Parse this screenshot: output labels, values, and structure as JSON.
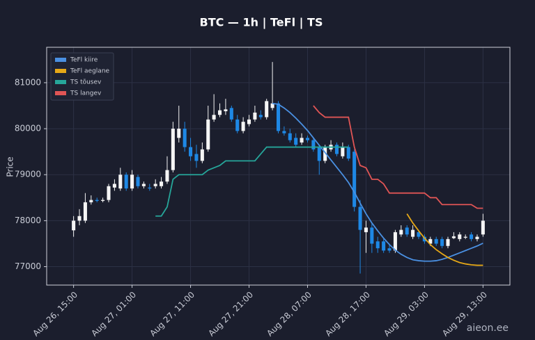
{
  "chart_data": {
    "type": "candlestick",
    "title": "BTC — 1h  |  TeFl  |  TS",
    "y_label": "Price",
    "watermark": "aieon.ee",
    "categories": [
      "Aug 26, 15:00",
      null,
      null,
      null,
      null,
      null,
      null,
      null,
      null,
      null,
      "Aug 27, 01:00",
      null,
      null,
      null,
      null,
      null,
      null,
      null,
      null,
      null,
      "Aug 27, 11:00",
      null,
      null,
      null,
      null,
      null,
      null,
      null,
      null,
      null,
      "Aug 27, 21:00",
      null,
      null,
      null,
      null,
      null,
      null,
      null,
      null,
      null,
      "Aug 28, 07:00",
      null,
      null,
      null,
      null,
      null,
      null,
      null,
      null,
      null,
      "Aug 28, 17:00",
      null,
      null,
      null,
      null,
      null,
      null,
      null,
      null,
      null,
      "Aug 29, 03:00",
      null,
      null,
      null,
      null,
      null,
      null,
      null,
      null,
      null,
      "Aug 29, 13:00"
    ],
    "open": [
      77790,
      78000,
      78000,
      78400,
      78450,
      78430,
      78450,
      78720,
      78700,
      79000,
      78700,
      78950,
      78750,
      78720,
      78750,
      78750,
      78850,
      79100,
      79800,
      80000,
      79600,
      79450,
      79300,
      79550,
      80200,
      80300,
      80380,
      80450,
      80200,
      79950,
      80100,
      80200,
      80300,
      80250,
      80450,
      80550,
      79950,
      79900,
      79800,
      79700,
      79800,
      79750,
      79600,
      79300,
      79550,
      79650,
      79400,
      79600,
      79500,
      78300,
      77750,
      77850,
      77550,
      77550,
      77400,
      77350,
      77700,
      77850,
      77650,
      77750,
      77650,
      77500,
      77600,
      77600,
      77450,
      77620,
      77600,
      77630,
      77700,
      77600,
      77700
    ],
    "high": [
      78100,
      78250,
      78600,
      78550,
      78500,
      78500,
      78800,
      78900,
      79150,
      79050,
      79100,
      79000,
      78850,
      78800,
      78900,
      78950,
      79400,
      80150,
      80500,
      80150,
      79800,
      79650,
      79700,
      80500,
      80750,
      80550,
      80650,
      80500,
      80300,
      80250,
      80300,
      80500,
      80400,
      80650,
      81450,
      80600,
      80050,
      80000,
      79900,
      79900,
      79850,
      79800,
      79650,
      79650,
      79750,
      79700,
      79700,
      79650,
      79550,
      78450,
      78000,
      77950,
      77650,
      77600,
      77500,
      77800,
      77900,
      77900,
      77900,
      77800,
      77700,
      77650,
      77650,
      77650,
      77650,
      77750,
      77750,
      77700,
      77750,
      77700,
      78150
    ],
    "low": [
      77650,
      77900,
      77950,
      78350,
      78400,
      78400,
      78400,
      78650,
      78650,
      78650,
      78650,
      78700,
      78700,
      78650,
      78700,
      78700,
      78800,
      79050,
      79700,
      79500,
      79300,
      79150,
      79250,
      79500,
      80150,
      80250,
      80300,
      80150,
      79900,
      79900,
      80050,
      80150,
      80200,
      80200,
      80400,
      79900,
      79850,
      79700,
      79600,
      79650,
      79700,
      79500,
      79000,
      79250,
      79500,
      79400,
      79350,
      79300,
      78200,
      76850,
      77300,
      77300,
      77300,
      77300,
      77300,
      77300,
      77650,
      77650,
      77600,
      77600,
      77500,
      77450,
      77450,
      77400,
      77400,
      77600,
      77550,
      77600,
      77550,
      77550,
      77650
    ],
    "close": [
      78000,
      78100,
      78400,
      78450,
      78430,
      78450,
      78750,
      78800,
      79000,
      78700,
      79000,
      78750,
      78800,
      78700,
      78800,
      78850,
      79100,
      80000,
      80000,
      79600,
      79400,
      79300,
      79550,
      80200,
      80300,
      80400,
      80420,
      80200,
      79950,
      80150,
      80200,
      80350,
      80250,
      80600,
      80550,
      79950,
      79900,
      79750,
      79650,
      79800,
      79750,
      79550,
      79300,
      79600,
      79650,
      79450,
      79600,
      79350,
      78300,
      77800,
      77850,
      77500,
      77400,
      77350,
      77350,
      77750,
      77800,
      77700,
      77800,
      77650,
      77550,
      77600,
      77500,
      77450,
      77600,
      77660,
      77700,
      77650,
      77600,
      77650,
      78000
    ],
    "up_color": "#f5f5f5",
    "down_color": "#1e88e5",
    "series": [
      {
        "name": "TeFl kiire",
        "color": "#4a90e2",
        "values": [
          null,
          null,
          null,
          null,
          null,
          null,
          null,
          null,
          null,
          null,
          null,
          null,
          null,
          null,
          null,
          null,
          null,
          null,
          null,
          null,
          null,
          null,
          null,
          null,
          null,
          null,
          null,
          null,
          null,
          null,
          null,
          null,
          null,
          null,
          80550,
          80530,
          80450,
          80350,
          80230,
          80100,
          79960,
          79800,
          79640,
          79480,
          79320,
          79160,
          79000,
          78830,
          78620,
          78380,
          78150,
          77950,
          77780,
          77620,
          77480,
          77360,
          77270,
          77200,
          77150,
          77130,
          77120,
          77120,
          77130,
          77160,
          77200,
          77250,
          77300,
          77350,
          77400,
          77450,
          77510
        ]
      },
      {
        "name": "TeFl aeglane",
        "color": "#e6a817",
        "values": [
          null,
          null,
          null,
          null,
          null,
          null,
          null,
          null,
          null,
          null,
          null,
          null,
          null,
          null,
          null,
          null,
          null,
          null,
          null,
          null,
          null,
          null,
          null,
          null,
          null,
          null,
          null,
          null,
          null,
          null,
          null,
          null,
          null,
          null,
          null,
          null,
          null,
          null,
          null,
          null,
          null,
          null,
          null,
          null,
          null,
          null,
          null,
          null,
          null,
          null,
          null,
          null,
          null,
          null,
          null,
          null,
          null,
          78150,
          77950,
          77780,
          77620,
          77480,
          77370,
          77280,
          77200,
          77140,
          77090,
          77060,
          77040,
          77030,
          77030
        ]
      },
      {
        "name": "TS tõusev",
        "color": "#26a69a",
        "values": [
          null,
          null,
          null,
          null,
          null,
          null,
          null,
          null,
          null,
          null,
          null,
          null,
          null,
          null,
          78100,
          78100,
          78300,
          78900,
          79000,
          79000,
          79000,
          79000,
          79000,
          79100,
          79150,
          79200,
          79300,
          79300,
          79300,
          79300,
          79300,
          79300,
          79450,
          79600,
          79600,
          79600,
          79600,
          79600,
          79600,
          79600,
          79600,
          79600,
          79600,
          79600,
          79600,
          79600,
          79600,
          79600,
          null,
          null,
          null,
          null,
          null,
          null,
          null,
          null,
          null,
          null,
          null,
          null,
          null,
          null,
          null,
          null,
          null,
          null,
          null,
          null,
          null,
          null,
          null
        ]
      },
      {
        "name": "TS langev",
        "color": "#e05555",
        "values": [
          null,
          null,
          null,
          null,
          null,
          null,
          null,
          null,
          null,
          null,
          null,
          null,
          null,
          null,
          null,
          null,
          null,
          null,
          null,
          null,
          null,
          null,
          null,
          null,
          null,
          null,
          null,
          null,
          null,
          null,
          null,
          null,
          null,
          null,
          null,
          null,
          null,
          null,
          null,
          null,
          null,
          80500,
          80350,
          80250,
          80250,
          80250,
          80250,
          80250,
          79600,
          79200,
          79150,
          78900,
          78900,
          78800,
          78600,
          78600,
          78600,
          78600,
          78600,
          78600,
          78600,
          78500,
          78500,
          78350,
          78350,
          78350,
          78350,
          78350,
          78350,
          78270,
          78270
        ]
      }
    ],
    "ylim": [
      76600,
      81770
    ],
    "yticks": [
      77000,
      78000,
      79000,
      80000,
      81000
    ],
    "grid": true,
    "legend": "upper left"
  }
}
